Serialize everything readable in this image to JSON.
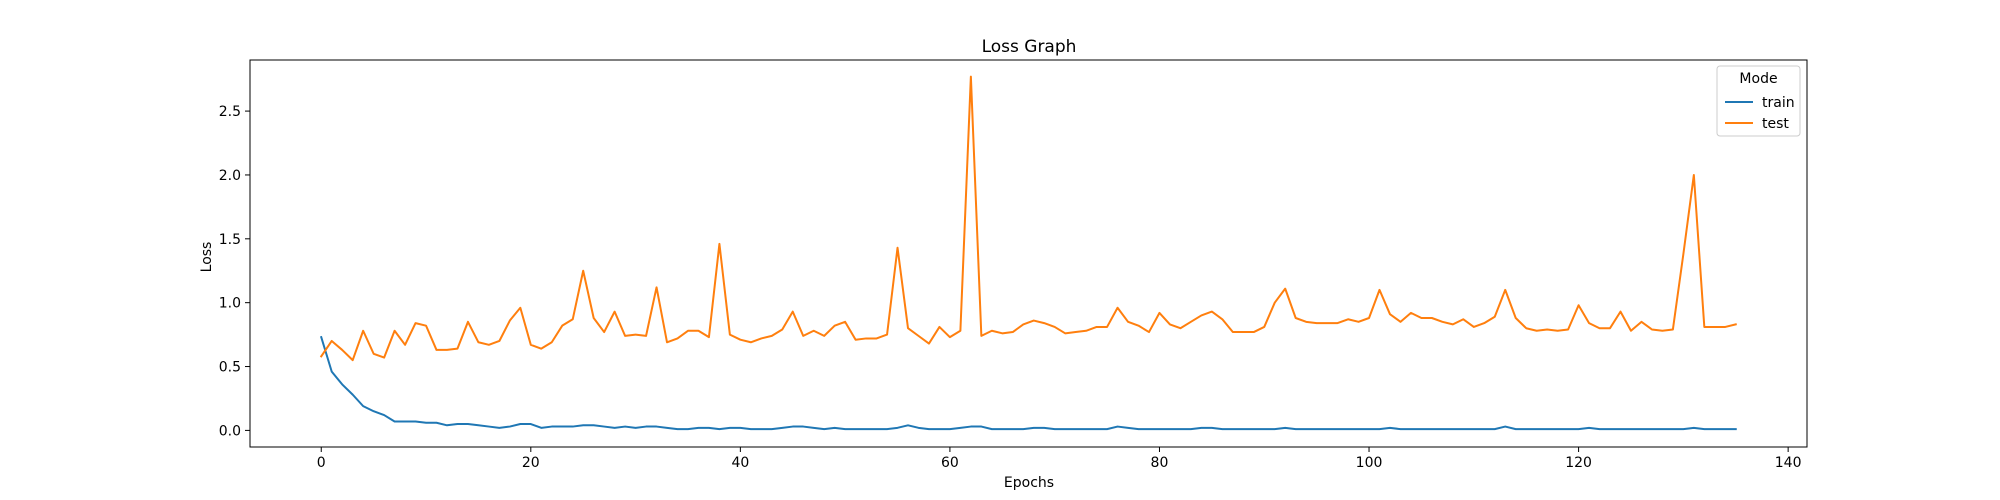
{
  "chart_data": {
    "type": "line",
    "title": "Loss Graph",
    "xlabel": "Epochs",
    "ylabel": "Loss",
    "xlim": [
      -6.8,
      141.8
    ],
    "ylim": [
      -0.13,
      2.9
    ],
    "xticks": [
      0,
      20,
      40,
      60,
      80,
      100,
      120,
      140
    ],
    "xtick_labels": [
      "0",
      "20",
      "40",
      "60",
      "80",
      "100",
      "120",
      "140"
    ],
    "yticks": [
      0.0,
      0.5,
      1.0,
      1.5,
      2.0,
      2.5
    ],
    "ytick_labels": [
      "0.0",
      "0.5",
      "1.0",
      "1.5",
      "2.0",
      "2.5"
    ],
    "grid": false,
    "legend": {
      "title": "Mode",
      "position": "top-right"
    },
    "series": [
      {
        "name": "train",
        "color": "#1f77b4",
        "values": [
          0.73,
          0.46,
          0.36,
          0.28,
          0.19,
          0.15,
          0.12,
          0.07,
          0.07,
          0.07,
          0.06,
          0.06,
          0.04,
          0.05,
          0.05,
          0.04,
          0.03,
          0.02,
          0.03,
          0.05,
          0.05,
          0.02,
          0.03,
          0.03,
          0.03,
          0.04,
          0.04,
          0.03,
          0.02,
          0.03,
          0.02,
          0.03,
          0.03,
          0.02,
          0.01,
          0.01,
          0.02,
          0.02,
          0.01,
          0.02,
          0.02,
          0.01,
          0.01,
          0.01,
          0.02,
          0.03,
          0.03,
          0.02,
          0.01,
          0.02,
          0.01,
          0.01,
          0.01,
          0.01,
          0.01,
          0.02,
          0.04,
          0.02,
          0.01,
          0.01,
          0.01,
          0.02,
          0.03,
          0.03,
          0.01,
          0.01,
          0.01,
          0.01,
          0.02,
          0.02,
          0.01,
          0.01,
          0.01,
          0.01,
          0.01,
          0.01,
          0.03,
          0.02,
          0.01,
          0.01,
          0.01,
          0.01,
          0.01,
          0.01,
          0.02,
          0.02,
          0.01,
          0.01,
          0.01,
          0.01,
          0.01,
          0.01,
          0.02,
          0.01,
          0.01,
          0.01,
          0.01,
          0.01,
          0.01,
          0.01,
          0.01,
          0.01,
          0.02,
          0.01,
          0.01,
          0.01,
          0.01,
          0.01,
          0.01,
          0.01,
          0.01,
          0.01,
          0.01,
          0.03,
          0.01,
          0.01,
          0.01,
          0.01,
          0.01,
          0.01,
          0.01,
          0.02,
          0.01,
          0.01,
          0.01,
          0.01,
          0.01,
          0.01,
          0.01,
          0.01,
          0.01,
          0.02,
          0.01,
          0.01,
          0.01,
          0.01
        ]
      },
      {
        "name": "test",
        "color": "#ff7f0e",
        "values": [
          0.58,
          0.7,
          0.63,
          0.55,
          0.78,
          0.6,
          0.57,
          0.78,
          0.67,
          0.84,
          0.82,
          0.63,
          0.63,
          0.64,
          0.85,
          0.69,
          0.67,
          0.7,
          0.86,
          0.96,
          0.67,
          0.64,
          0.69,
          0.82,
          0.87,
          1.25,
          0.88,
          0.77,
          0.93,
          0.74,
          0.75,
          0.74,
          1.12,
          0.69,
          0.72,
          0.78,
          0.78,
          0.73,
          1.46,
          0.75,
          0.71,
          0.69,
          0.72,
          0.74,
          0.79,
          0.93,
          0.74,
          0.78,
          0.74,
          0.82,
          0.85,
          0.71,
          0.72,
          0.72,
          0.75,
          1.43,
          0.8,
          0.74,
          0.68,
          0.81,
          0.73,
          0.78,
          2.77,
          0.74,
          0.78,
          0.76,
          0.77,
          0.83,
          0.86,
          0.84,
          0.81,
          0.76,
          0.77,
          0.78,
          0.81,
          0.81,
          0.96,
          0.85,
          0.82,
          0.77,
          0.92,
          0.83,
          0.8,
          0.85,
          0.9,
          0.93,
          0.87,
          0.77,
          0.77,
          0.77,
          0.81,
          1.0,
          1.11,
          0.88,
          0.85,
          0.84,
          0.84,
          0.84,
          0.87,
          0.85,
          0.88,
          1.1,
          0.91,
          0.85,
          0.92,
          0.88,
          0.88,
          0.85,
          0.83,
          0.87,
          0.81,
          0.84,
          0.89,
          1.1,
          0.88,
          0.8,
          0.78,
          0.79,
          0.78,
          0.79,
          0.98,
          0.84,
          0.8,
          0.8,
          0.93,
          0.78,
          0.85,
          0.79,
          0.78,
          0.79,
          1.38,
          2.0,
          0.81,
          0.81,
          0.81,
          0.83
        ]
      }
    ]
  }
}
